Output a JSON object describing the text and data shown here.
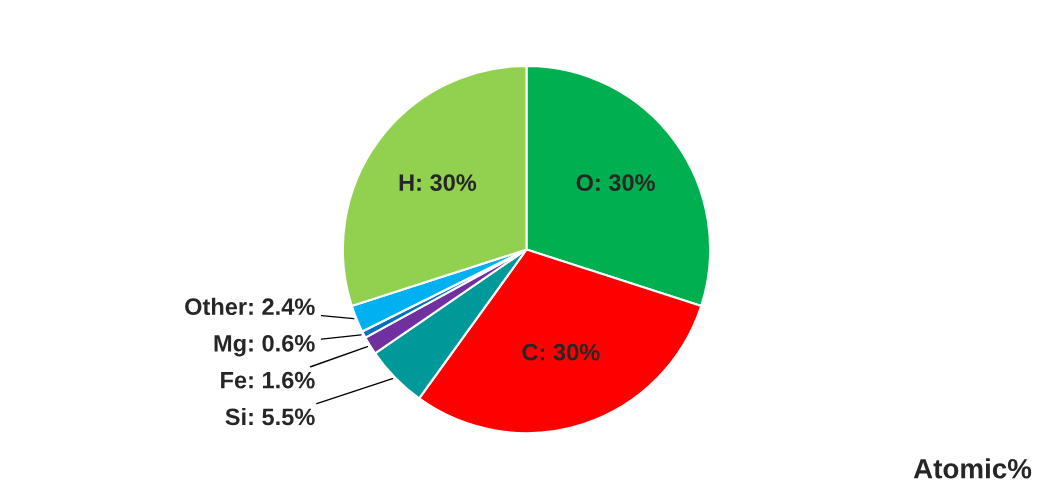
{
  "chart_data": {
    "type": "pie",
    "categories": [
      "O: 30%",
      "C: 30%",
      "Si: 5.5%",
      "Fe: 1.6%",
      "Mg: 0.6%",
      "Other: 2.4%",
      "H: 30%"
    ],
    "values": [
      30,
      30,
      5.5,
      1.6,
      0.6,
      2.4,
      30
    ],
    "colors": [
      "#00b050",
      "#ff0000",
      "#009999",
      "#7030a0",
      "#0070c0",
      "#00b0f0",
      "#92d050"
    ],
    "annotations": [
      "Atomic%"
    ]
  }
}
